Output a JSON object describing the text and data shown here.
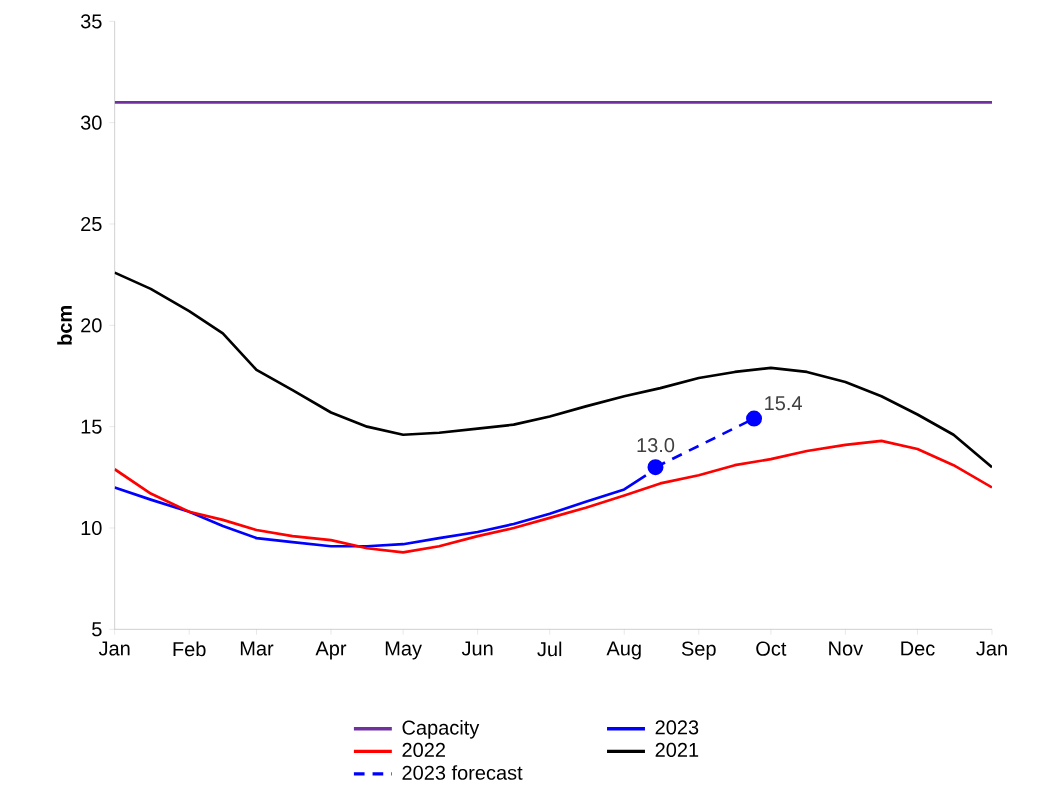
{
  "chart_data": {
    "type": "line",
    "ylabel": "bcm",
    "xlim": [
      "2023-01-01",
      "2024-01-01"
    ],
    "ylim": [
      5,
      35
    ],
    "yticks": [
      5,
      10,
      15,
      20,
      25,
      30,
      35
    ],
    "xticks": [
      {
        "value": "2023-01-01",
        "label": "Jan"
      },
      {
        "value": "2023-02-01",
        "label": "Feb"
      },
      {
        "value": "2023-03-01",
        "label": "Mar"
      },
      {
        "value": "2023-04-01",
        "label": "Apr"
      },
      {
        "value": "2023-05-01",
        "label": "May"
      },
      {
        "value": "2023-06-01",
        "label": "Jun"
      },
      {
        "value": "2023-07-01",
        "label": "Jul"
      },
      {
        "value": "2023-08-01",
        "label": "Aug"
      },
      {
        "value": "2023-09-01",
        "label": "Sep"
      },
      {
        "value": "2023-10-01",
        "label": "Oct"
      },
      {
        "value": "2023-11-01",
        "label": "Nov"
      },
      {
        "value": "2023-12-01",
        "label": "Dec"
      },
      {
        "value": "2024-01-01",
        "label": "Jan"
      }
    ],
    "legend": "bottom",
    "grid": false,
    "series": [
      {
        "name": "Capacity",
        "color": "#7030a0",
        "x": [
          "2023-01-01",
          "2024-01-01"
        ],
        "values": [
          31.0,
          31.0
        ]
      },
      {
        "name": "2023",
        "color": "#0000ff",
        "x": [
          "2023-01-01",
          "2023-01-16",
          "2023-02-01",
          "2023-02-15",
          "2023-03-01",
          "2023-03-16",
          "2023-04-01",
          "2023-04-16",
          "2023-05-01",
          "2023-05-16",
          "2023-06-01",
          "2023-06-16",
          "2023-07-01",
          "2023-07-16",
          "2023-08-01",
          "2023-08-10"
        ],
        "values": [
          12.0,
          11.4,
          10.8,
          10.1,
          9.5,
          9.3,
          9.1,
          9.1,
          9.2,
          9.5,
          9.8,
          10.2,
          10.7,
          11.3,
          11.9,
          12.6
        ]
      },
      {
        "name": "2022",
        "color": "#ff0000",
        "x": [
          "2023-01-01",
          "2023-01-16",
          "2023-02-01",
          "2023-02-15",
          "2023-03-01",
          "2023-03-16",
          "2023-04-01",
          "2023-04-16",
          "2023-05-01",
          "2023-05-16",
          "2023-06-01",
          "2023-06-16",
          "2023-07-01",
          "2023-07-16",
          "2023-08-01",
          "2023-08-16",
          "2023-09-01",
          "2023-09-16",
          "2023-10-01",
          "2023-10-16",
          "2023-11-01",
          "2023-11-16",
          "2023-12-01",
          "2023-12-16",
          "2024-01-01"
        ],
        "values": [
          12.9,
          11.7,
          10.8,
          10.4,
          9.9,
          9.6,
          9.4,
          9.0,
          8.8,
          9.1,
          9.6,
          10.0,
          10.5,
          11.0,
          11.6,
          12.2,
          12.6,
          13.1,
          13.4,
          13.8,
          14.1,
          14.3,
          13.9,
          13.1,
          12.0
        ]
      },
      {
        "name": "2021",
        "color": "#000000",
        "x": [
          "2023-01-01",
          "2023-01-16",
          "2023-02-01",
          "2023-02-15",
          "2023-03-01",
          "2023-03-16",
          "2023-04-01",
          "2023-04-16",
          "2023-05-01",
          "2023-05-16",
          "2023-06-01",
          "2023-06-16",
          "2023-07-01",
          "2023-07-16",
          "2023-08-01",
          "2023-08-16",
          "2023-09-01",
          "2023-09-16",
          "2023-10-01",
          "2023-10-16",
          "2023-11-01",
          "2023-11-16",
          "2023-12-01",
          "2023-12-16",
          "2024-01-01"
        ],
        "values": [
          22.6,
          21.8,
          20.7,
          19.6,
          17.8,
          16.8,
          15.7,
          15.0,
          14.6,
          14.7,
          14.9,
          15.1,
          15.5,
          16.0,
          16.5,
          16.9,
          17.4,
          17.7,
          17.9,
          17.7,
          17.2,
          16.5,
          15.6,
          14.6,
          13.0
        ]
      },
      {
        "name": "2023 forecast",
        "color": "#0000ff",
        "line_style": "dashed",
        "marker": "circle",
        "x": [
          "2023-08-14",
          "2023-09-24"
        ],
        "values": [
          13.0,
          15.4
        ],
        "value_labels": [
          "13.0",
          "15.4"
        ]
      }
    ]
  }
}
